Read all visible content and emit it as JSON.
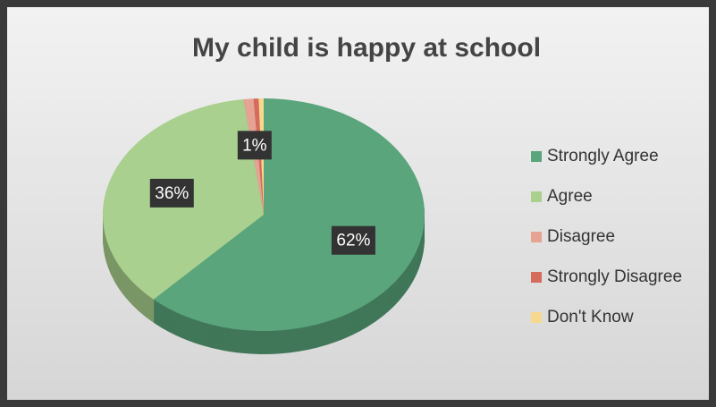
{
  "chart_data": {
    "type": "pie",
    "title": "My child is happy at school",
    "categories": [
      "Strongly Agree",
      "Agree",
      "Disagree",
      "Strongly Disagree",
      "Don't Know"
    ],
    "values": [
      62,
      36,
      1,
      0.5,
      0.5
    ],
    "value_labels": [
      "62%",
      "36%",
      "1%",
      null,
      null
    ],
    "colors": [
      "#5aa57c",
      "#a9d08e",
      "#e6a293",
      "#d46b5c",
      "#f7d88c"
    ],
    "legend": "right"
  }
}
